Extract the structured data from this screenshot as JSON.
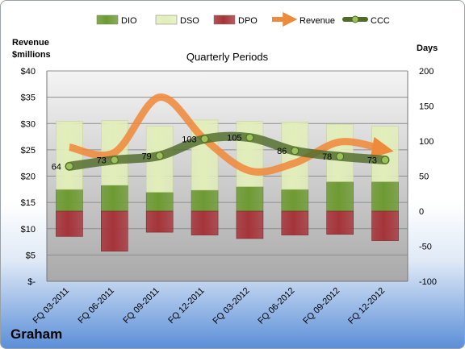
{
  "chart_data": {
    "type": "bar",
    "title": "Quarterly Periods",
    "left_axis": {
      "label_line1": "Revenue",
      "label_line2": "$millions",
      "ylim": [
        0,
        40
      ],
      "ticks": [
        "$-",
        "$5",
        "$10",
        "$15",
        "$20",
        "$25",
        "$30",
        "$35",
        "$40"
      ]
    },
    "right_axis": {
      "label": "Days",
      "ylim": [
        -100,
        200
      ],
      "ticks": [
        "-100",
        "-50",
        "0",
        "50",
        "100",
        "150",
        "200"
      ]
    },
    "categories": [
      "FQ 03-2011",
      "FQ 06-2011",
      "FQ 09-2011",
      "FQ 12-2011",
      "FQ 03-2012",
      "FQ 06-2012",
      "FQ 09-2012",
      "FQ 12-2012"
    ],
    "series": [
      {
        "name": "DIO",
        "kind": "stacked-bar",
        "axis": "right",
        "color": "#6e9a32",
        "values": [
          31,
          37,
          27,
          30,
          35,
          31,
          42,
          42
        ]
      },
      {
        "name": "DSO",
        "kind": "stacked-bar",
        "axis": "right",
        "color": "#e2eeba",
        "values": [
          97,
          92,
          94,
          100,
          93,
          96,
          82,
          79
        ]
      },
      {
        "name": "DPO",
        "kind": "stacked-bar",
        "axis": "right",
        "color": "#a5343a",
        "values": [
          -36,
          -57,
          -30,
          -34,
          -39,
          -34,
          -33,
          -42
        ]
      },
      {
        "name": "Revenue",
        "kind": "line",
        "axis": "left",
        "color": "#ee8a3c",
        "values": [
          25.5,
          24.5,
          35,
          27,
          21,
          22.5,
          26.5,
          25
        ]
      },
      {
        "name": "CCC",
        "kind": "line",
        "axis": "right",
        "color": "#4f6b2a",
        "values": [
          64,
          73,
          79,
          103,
          105,
          86,
          78,
          73
        ]
      }
    ],
    "grid": true,
    "legend": "top"
  },
  "company": "Graham"
}
